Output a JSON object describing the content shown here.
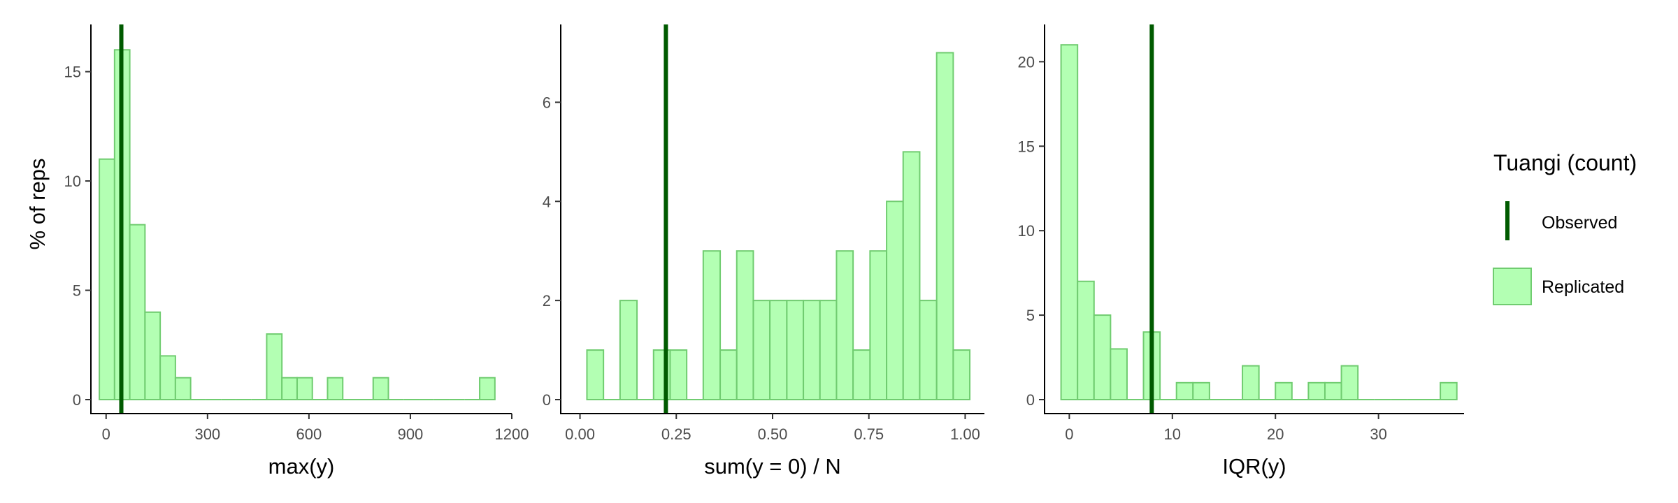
{
  "y_axis_label": "% of reps",
  "legend": {
    "title": "Tuangi (count)",
    "items": [
      {
        "label": "Observed",
        "color": "#005a00"
      },
      {
        "label": "Replicated",
        "fill": "#b3ffb3",
        "stroke": "#70cc70"
      }
    ]
  },
  "chart_data": [
    {
      "type": "bar",
      "panel": "left",
      "xlabel": "max(y)",
      "ylabel": "% of reps",
      "xlim": [
        -45,
        1200
      ],
      "ylim": [
        0,
        17
      ],
      "xticks": [
        0,
        300,
        600,
        900,
        1200
      ],
      "xtick_labels": [
        "0",
        "300",
        "600",
        "900",
        "1200"
      ],
      "yticks": [
        0,
        5,
        10,
        15
      ],
      "ytick_labels": [
        "0",
        "5",
        "10",
        "15"
      ],
      "observed": 45,
      "bins": [
        {
          "x0": -20,
          "x1": 25,
          "value": 11
        },
        {
          "x0": 25,
          "x1": 70,
          "value": 16
        },
        {
          "x0": 70,
          "x1": 115,
          "value": 8
        },
        {
          "x0": 115,
          "x1": 160,
          "value": 4
        },
        {
          "x0": 160,
          "x1": 205,
          "value": 2
        },
        {
          "x0": 205,
          "x1": 250,
          "value": 1
        },
        {
          "x0": 250,
          "x1": 295,
          "value": 0
        },
        {
          "x0": 295,
          "x1": 340,
          "value": 0
        },
        {
          "x0": 340,
          "x1": 385,
          "value": 0
        },
        {
          "x0": 385,
          "x1": 430,
          "value": 0
        },
        {
          "x0": 430,
          "x1": 475,
          "value": 0
        },
        {
          "x0": 475,
          "x1": 520,
          "value": 3
        },
        {
          "x0": 520,
          "x1": 565,
          "value": 1
        },
        {
          "x0": 565,
          "x1": 610,
          "value": 1
        },
        {
          "x0": 610,
          "x1": 655,
          "value": 0
        },
        {
          "x0": 655,
          "x1": 700,
          "value": 1
        },
        {
          "x0": 700,
          "x1": 745,
          "value": 0
        },
        {
          "x0": 745,
          "x1": 790,
          "value": 0
        },
        {
          "x0": 790,
          "x1": 835,
          "value": 1
        },
        {
          "x0": 835,
          "x1": 880,
          "value": 0
        },
        {
          "x0": 880,
          "x1": 925,
          "value": 0
        },
        {
          "x0": 925,
          "x1": 970,
          "value": 0
        },
        {
          "x0": 970,
          "x1": 1015,
          "value": 0
        },
        {
          "x0": 1015,
          "x1": 1060,
          "value": 0
        },
        {
          "x0": 1060,
          "x1": 1105,
          "value": 0
        },
        {
          "x0": 1105,
          "x1": 1150,
          "value": 1
        }
      ]
    },
    {
      "type": "bar",
      "panel": "middle",
      "xlabel": "sum(y = 0) / N",
      "ylabel": "",
      "xlim": [
        -0.05,
        1.05
      ],
      "ylim": [
        0,
        7.5
      ],
      "xticks": [
        0,
        0.25,
        0.5,
        0.75,
        1.0
      ],
      "xtick_labels": [
        "0.00",
        "0.25",
        "0.50",
        "0.75",
        "1.00"
      ],
      "yticks": [
        0,
        2,
        4,
        6
      ],
      "ytick_labels": [
        "0",
        "2",
        "4",
        "6"
      ],
      "observed": 0.223,
      "bins": [
        {
          "x0": 0.018,
          "x1": 0.061,
          "value": 1
        },
        {
          "x0": 0.061,
          "x1": 0.104,
          "value": 0
        },
        {
          "x0": 0.104,
          "x1": 0.148,
          "value": 2
        },
        {
          "x0": 0.148,
          "x1": 0.191,
          "value": 0
        },
        {
          "x0": 0.191,
          "x1": 0.234,
          "value": 1
        },
        {
          "x0": 0.234,
          "x1": 0.277,
          "value": 1
        },
        {
          "x0": 0.277,
          "x1": 0.32,
          "value": 0
        },
        {
          "x0": 0.32,
          "x1": 0.364,
          "value": 3
        },
        {
          "x0": 0.364,
          "x1": 0.407,
          "value": 1
        },
        {
          "x0": 0.407,
          "x1": 0.45,
          "value": 3
        },
        {
          "x0": 0.45,
          "x1": 0.493,
          "value": 2
        },
        {
          "x0": 0.493,
          "x1": 0.537,
          "value": 2
        },
        {
          "x0": 0.537,
          "x1": 0.58,
          "value": 2
        },
        {
          "x0": 0.58,
          "x1": 0.623,
          "value": 2
        },
        {
          "x0": 0.623,
          "x1": 0.666,
          "value": 2
        },
        {
          "x0": 0.666,
          "x1": 0.709,
          "value": 3
        },
        {
          "x0": 0.709,
          "x1": 0.753,
          "value": 1
        },
        {
          "x0": 0.753,
          "x1": 0.796,
          "value": 3
        },
        {
          "x0": 0.796,
          "x1": 0.839,
          "value": 4
        },
        {
          "x0": 0.839,
          "x1": 0.882,
          "value": 5
        },
        {
          "x0": 0.882,
          "x1": 0.926,
          "value": 2
        },
        {
          "x0": 0.926,
          "x1": 0.969,
          "value": 7
        },
        {
          "x0": 0.969,
          "x1": 1.012,
          "value": 1
        }
      ]
    },
    {
      "type": "bar",
      "panel": "right",
      "xlabel": "IQR(y)",
      "ylabel": "",
      "xlim": [
        -2.4,
        38.3
      ],
      "ylim": [
        0,
        22
      ],
      "xticks": [
        0,
        10,
        20,
        30
      ],
      "xtick_labels": [
        "0",
        "10",
        "20",
        "30"
      ],
      "yticks": [
        0,
        5,
        10,
        15,
        20
      ],
      "ytick_labels": [
        "0",
        "5",
        "10",
        "15",
        "20"
      ],
      "observed": 8,
      "bins": [
        {
          "x0": -0.8,
          "x1": 0.8,
          "value": 21
        },
        {
          "x0": 0.8,
          "x1": 2.4,
          "value": 7
        },
        {
          "x0": 2.4,
          "x1": 4.0,
          "value": 5
        },
        {
          "x0": 4.0,
          "x1": 5.6,
          "value": 3
        },
        {
          "x0": 5.6,
          "x1": 7.2,
          "value": 0
        },
        {
          "x0": 7.2,
          "x1": 8.8,
          "value": 4
        },
        {
          "x0": 8.8,
          "x1": 10.4,
          "value": 0
        },
        {
          "x0": 10.4,
          "x1": 12.0,
          "value": 1
        },
        {
          "x0": 12.0,
          "x1": 13.6,
          "value": 1
        },
        {
          "x0": 13.6,
          "x1": 15.2,
          "value": 0
        },
        {
          "x0": 15.2,
          "x1": 16.8,
          "value": 0
        },
        {
          "x0": 16.8,
          "x1": 18.4,
          "value": 2
        },
        {
          "x0": 18.4,
          "x1": 20.0,
          "value": 0
        },
        {
          "x0": 20.0,
          "x1": 21.6,
          "value": 1
        },
        {
          "x0": 21.6,
          "x1": 23.2,
          "value": 0
        },
        {
          "x0": 23.2,
          "x1": 24.8,
          "value": 1
        },
        {
          "x0": 24.8,
          "x1": 26.4,
          "value": 1
        },
        {
          "x0": 26.4,
          "x1": 28.0,
          "value": 2
        },
        {
          "x0": 28.0,
          "x1": 29.6,
          "value": 0
        },
        {
          "x0": 29.6,
          "x1": 31.2,
          "value": 0
        },
        {
          "x0": 31.2,
          "x1": 32.8,
          "value": 0
        },
        {
          "x0": 32.8,
          "x1": 34.4,
          "value": 0
        },
        {
          "x0": 34.4,
          "x1": 36.0,
          "value": 0
        },
        {
          "x0": 36.0,
          "x1": 37.6,
          "value": 1
        }
      ]
    }
  ]
}
